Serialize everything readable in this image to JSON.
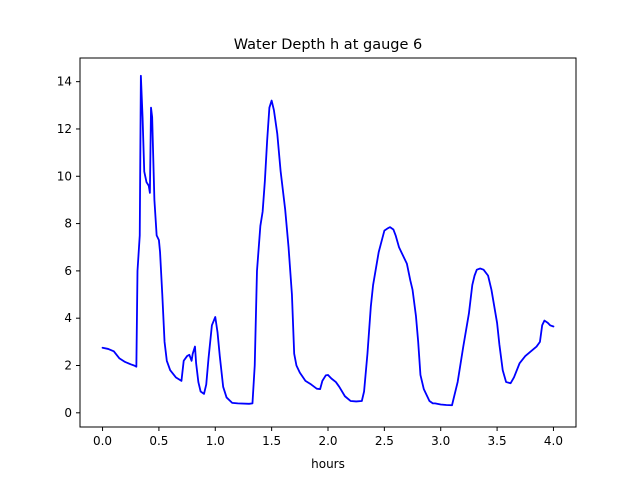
{
  "chart_data": {
    "type": "line",
    "title": "Water Depth h at gauge 6",
    "xlabel": "hours",
    "ylabel": "",
    "xlim": [
      -0.2,
      4.2
    ],
    "ylim": [
      -0.6,
      15.0
    ],
    "xticks": [
      0.0,
      0.5,
      1.0,
      1.5,
      2.0,
      2.5,
      3.0,
      3.5,
      4.0
    ],
    "xtick_labels": [
      "0.0",
      "0.5",
      "1.0",
      "1.5",
      "2.0",
      "2.5",
      "3.0",
      "3.5",
      "4.0"
    ],
    "yticks": [
      0,
      2,
      4,
      6,
      8,
      10,
      12,
      14
    ],
    "ytick_labels": [
      "0",
      "2",
      "4",
      "6",
      "8",
      "10",
      "12",
      "14"
    ],
    "grid": false,
    "series": [
      {
        "color": "#0000ff",
        "x": [
          0.0,
          0.05,
          0.1,
          0.15,
          0.2,
          0.25,
          0.28,
          0.3,
          0.31,
          0.33,
          0.34,
          0.355,
          0.37,
          0.39,
          0.41,
          0.42,
          0.43,
          0.44,
          0.46,
          0.48,
          0.5,
          0.51,
          0.53,
          0.55,
          0.57,
          0.6,
          0.65,
          0.7,
          0.72,
          0.75,
          0.77,
          0.79,
          0.8,
          0.82,
          0.83,
          0.85,
          0.87,
          0.9,
          0.92,
          0.94,
          0.97,
          1.0,
          1.02,
          1.04,
          1.07,
          1.1,
          1.15,
          1.2,
          1.3,
          1.33,
          1.35,
          1.37,
          1.4,
          1.42,
          1.44,
          1.46,
          1.48,
          1.5,
          1.52,
          1.55,
          1.58,
          1.62,
          1.65,
          1.68,
          1.7,
          1.72,
          1.75,
          1.8,
          1.85,
          1.9,
          1.93,
          1.95,
          1.98,
          2.0,
          2.03,
          2.07,
          2.1,
          2.15,
          2.2,
          2.25,
          2.3,
          2.32,
          2.35,
          2.38,
          2.4,
          2.45,
          2.5,
          2.53,
          2.55,
          2.58,
          2.6,
          2.63,
          2.65,
          2.7,
          2.73,
          2.75,
          2.78,
          2.8,
          2.82,
          2.85,
          2.88,
          2.9,
          2.93,
          2.95,
          3.0,
          3.05,
          3.1,
          3.15,
          3.2,
          3.25,
          3.28,
          3.3,
          3.32,
          3.35,
          3.38,
          3.42,
          3.45,
          3.5,
          3.52,
          3.55,
          3.58,
          3.62,
          3.65,
          3.7,
          3.75,
          3.8,
          3.85,
          3.88,
          3.9,
          3.92,
          3.95,
          3.97,
          4.0
        ],
        "y": [
          2.75,
          2.7,
          2.6,
          2.3,
          2.15,
          2.05,
          2.0,
          1.95,
          6.0,
          7.5,
          14.25,
          12.5,
          10.2,
          9.75,
          9.6,
          9.3,
          12.9,
          12.5,
          9.0,
          7.5,
          7.3,
          6.8,
          5.0,
          3.0,
          2.2,
          1.8,
          1.5,
          1.35,
          2.2,
          2.4,
          2.45,
          2.2,
          2.5,
          2.8,
          2.1,
          1.3,
          0.9,
          0.8,
          1.2,
          2.3,
          3.7,
          4.05,
          3.4,
          2.4,
          1.1,
          0.65,
          0.42,
          0.4,
          0.38,
          0.4,
          2.0,
          6.0,
          7.9,
          8.5,
          9.8,
          11.5,
          12.9,
          13.2,
          12.8,
          11.8,
          10.2,
          8.6,
          7.0,
          5.0,
          2.5,
          2.0,
          1.7,
          1.35,
          1.2,
          1.02,
          1.0,
          1.35,
          1.58,
          1.6,
          1.45,
          1.3,
          1.1,
          0.7,
          0.5,
          0.48,
          0.5,
          0.9,
          2.5,
          4.5,
          5.4,
          6.8,
          7.7,
          7.8,
          7.85,
          7.75,
          7.5,
          7.0,
          6.8,
          6.3,
          5.6,
          5.2,
          4.1,
          3.0,
          1.6,
          1.0,
          0.7,
          0.5,
          0.4,
          0.4,
          0.35,
          0.33,
          0.32,
          1.3,
          2.8,
          4.2,
          5.4,
          5.8,
          6.05,
          6.1,
          6.05,
          5.8,
          5.2,
          3.8,
          2.9,
          1.8,
          1.3,
          1.25,
          1.5,
          2.1,
          2.4,
          2.6,
          2.8,
          3.0,
          3.7,
          3.9,
          3.8,
          3.7,
          3.65
        ]
      }
    ]
  }
}
